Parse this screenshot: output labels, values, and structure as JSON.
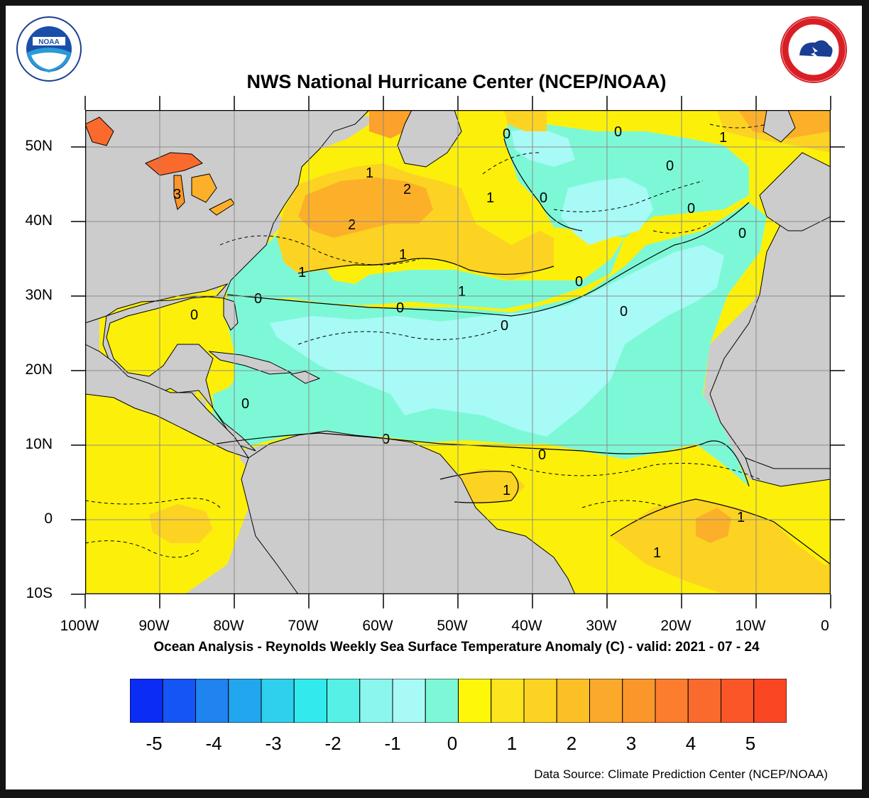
{
  "title": "NWS National Hurricane Center (NCEP/NOAA)",
  "subtitle": "Ocean Analysis - Reynolds Weekly Sea Surface Temperature Anomaly (C) - valid: 2021 - 07 - 24",
  "source": "Data Source: Climate Prediction Center (NCEP/NOAA)",
  "logos": {
    "left": "noaa-logo",
    "right": "nws-logo"
  },
  "lat_labels": [
    "50N",
    "40N",
    "30N",
    "20N",
    "10N",
    "0",
    "10S"
  ],
  "lon_labels": [
    "100W",
    "90W",
    "80W",
    "70W",
    "60W",
    "50W",
    "40W",
    "30W",
    "20W",
    "10W",
    "0"
  ],
  "colorbar": {
    "labels": [
      "-5",
      "-4",
      "-3",
      "-2",
      "-1",
      "0",
      "1",
      "2",
      "3",
      "4",
      "5"
    ],
    "colors": [
      "#0a2cf5",
      "#1555f5",
      "#1f83f0",
      "#22a6ee",
      "#2fd0ee",
      "#32eaee",
      "#55f0e6",
      "#8bf6ee",
      "#a8faf6",
      "#7df8d6",
      "#fdf80a",
      "#fce41e",
      "#fcd322",
      "#fcbf26",
      "#fba92a",
      "#fb962b",
      "#fb7d2d",
      "#fb6a2d",
      "#fb5628",
      "#fb4623"
    ]
  },
  "contour_labels": [
    "0",
    "0",
    "0",
    "0",
    "0",
    "0",
    "0",
    "0",
    "0",
    "0",
    "0",
    "0",
    "0",
    "0",
    "0",
    "1",
    "1",
    "1",
    "1",
    "1",
    "1",
    "1",
    "1",
    "1",
    "2",
    "2",
    "3"
  ],
  "colors": {
    "land": "#cccccc",
    "warm": "#fcf00a",
    "warm1": "#fcd322",
    "warm2": "#fcb02a",
    "cool": "#7df8d6",
    "cool1": "#a8faf6"
  }
}
